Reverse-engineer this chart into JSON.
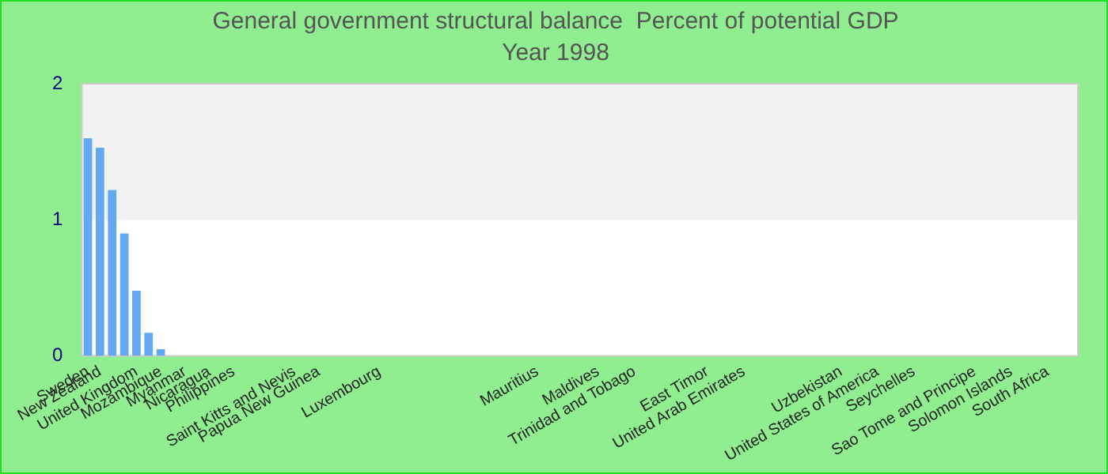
{
  "chart_data": {
    "type": "bar",
    "title": "General government structural balance  Percent of potential GDP",
    "subtitle": "Year 1998",
    "categories": [
      "Sweden",
      "New Zealand",
      null,
      null,
      "United Kingdom",
      null,
      "Mozambique",
      null,
      "Myanmar",
      null,
      "Nicaragua",
      null,
      "Philippines",
      null,
      null,
      null,
      null,
      "Saint Kitts and Nevis",
      null,
      "Papua New Guinea",
      null,
      null,
      null,
      null,
      "Luxembourg",
      null,
      null,
      null,
      null,
      null,
      null,
      null,
      null,
      null,
      null,
      null,
      null,
      "Mauritius",
      null,
      null,
      null,
      null,
      "Maldives",
      null,
      null,
      "Trinidad and Tobago",
      null,
      null,
      null,
      null,
      null,
      "East Timor",
      null,
      null,
      "United Arab Emirates",
      null,
      null,
      null,
      null,
      null,
      null,
      null,
      "Uzbekistan",
      null,
      null,
      "United States of America",
      null,
      null,
      "Seychelles",
      null,
      null,
      null,
      null,
      "Sao Tome and Principe",
      null,
      null,
      "Solomon Islands",
      null,
      null,
      "South Africa",
      null,
      null
    ],
    "values": [
      1.6,
      1.53,
      1.22,
      0.9,
      0.48,
      0.17,
      0.05,
      null,
      null,
      null,
      null,
      null,
      null,
      null,
      null,
      null,
      null,
      null,
      null,
      null,
      null,
      null,
      null,
      null,
      null,
      null,
      null,
      null,
      null,
      null,
      null,
      null,
      null,
      null,
      null,
      null,
      null,
      null,
      null,
      null,
      null,
      null,
      null,
      null,
      null,
      null,
      null,
      null,
      null,
      null,
      null,
      null,
      null,
      null,
      null,
      null,
      null,
      null,
      null,
      null,
      null,
      null,
      null,
      null,
      null,
      null,
      null,
      null,
      null,
      null,
      null,
      null,
      null,
      null,
      null,
      null,
      null,
      null,
      null,
      null,
      null,
      null
    ],
    "color": "#63a9f2",
    "ylim": [
      0,
      2
    ],
    "yticks": [
      0,
      1,
      2
    ],
    "grid": false,
    "bands": [
      {
        "axis": "y",
        "from": 1,
        "to": 2,
        "color": "#f2f2f2"
      }
    ]
  }
}
